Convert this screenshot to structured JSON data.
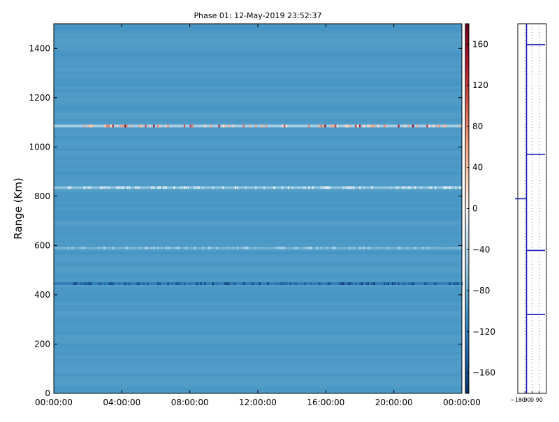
{
  "chart_data": [
    {
      "type": "heatmap",
      "title": "Phase 01: 12-May-2019 23:52:37",
      "xlabel": "",
      "ylabel": "Range (Km)",
      "x_ticks": [
        "00:00:00",
        "04:00:00",
        "08:00:00",
        "12:00:00",
        "16:00:00",
        "20:00:00",
        "00:00:00"
      ],
      "x_range_hours": [
        0,
        24
      ],
      "ylim": [
        0,
        1500
      ],
      "y_ticks": [
        0,
        200,
        400,
        600,
        800,
        1000,
        1200,
        1400
      ],
      "grid": false,
      "background_value": -95,
      "bands": [
        {
          "range_km": 1085,
          "typical_value": 10,
          "peak_value": 160,
          "description_values": "positive spikes"
        },
        {
          "range_km": 835,
          "typical_value": -20,
          "peak_value": 0
        },
        {
          "range_km": 590,
          "typical_value": -55,
          "peak_value": -40
        },
        {
          "range_km": 445,
          "typical_value": -150,
          "peak_value": -170
        }
      ],
      "colorbar": {
        "ticks": [
          160,
          120,
          80,
          40,
          0,
          -40,
          -80,
          -120,
          -160
        ],
        "range": [
          -180,
          180
        ],
        "colormap": "RdBu_r"
      }
    },
    {
      "type": "line",
      "title": "",
      "x_ticks": [
        "-180",
        "-90",
        "0",
        "90"
      ],
      "xlim": [
        -180,
        180
      ],
      "ylim": [
        0,
        1500
      ],
      "spikes": [
        {
          "range_km": 1415,
          "value": 180
        },
        {
          "range_km": 970,
          "value": 200
        },
        {
          "range_km": 790,
          "value": -60
        },
        {
          "range_km": 580,
          "value": 250
        },
        {
          "range_km": 320,
          "value": 230
        }
      ]
    }
  ]
}
